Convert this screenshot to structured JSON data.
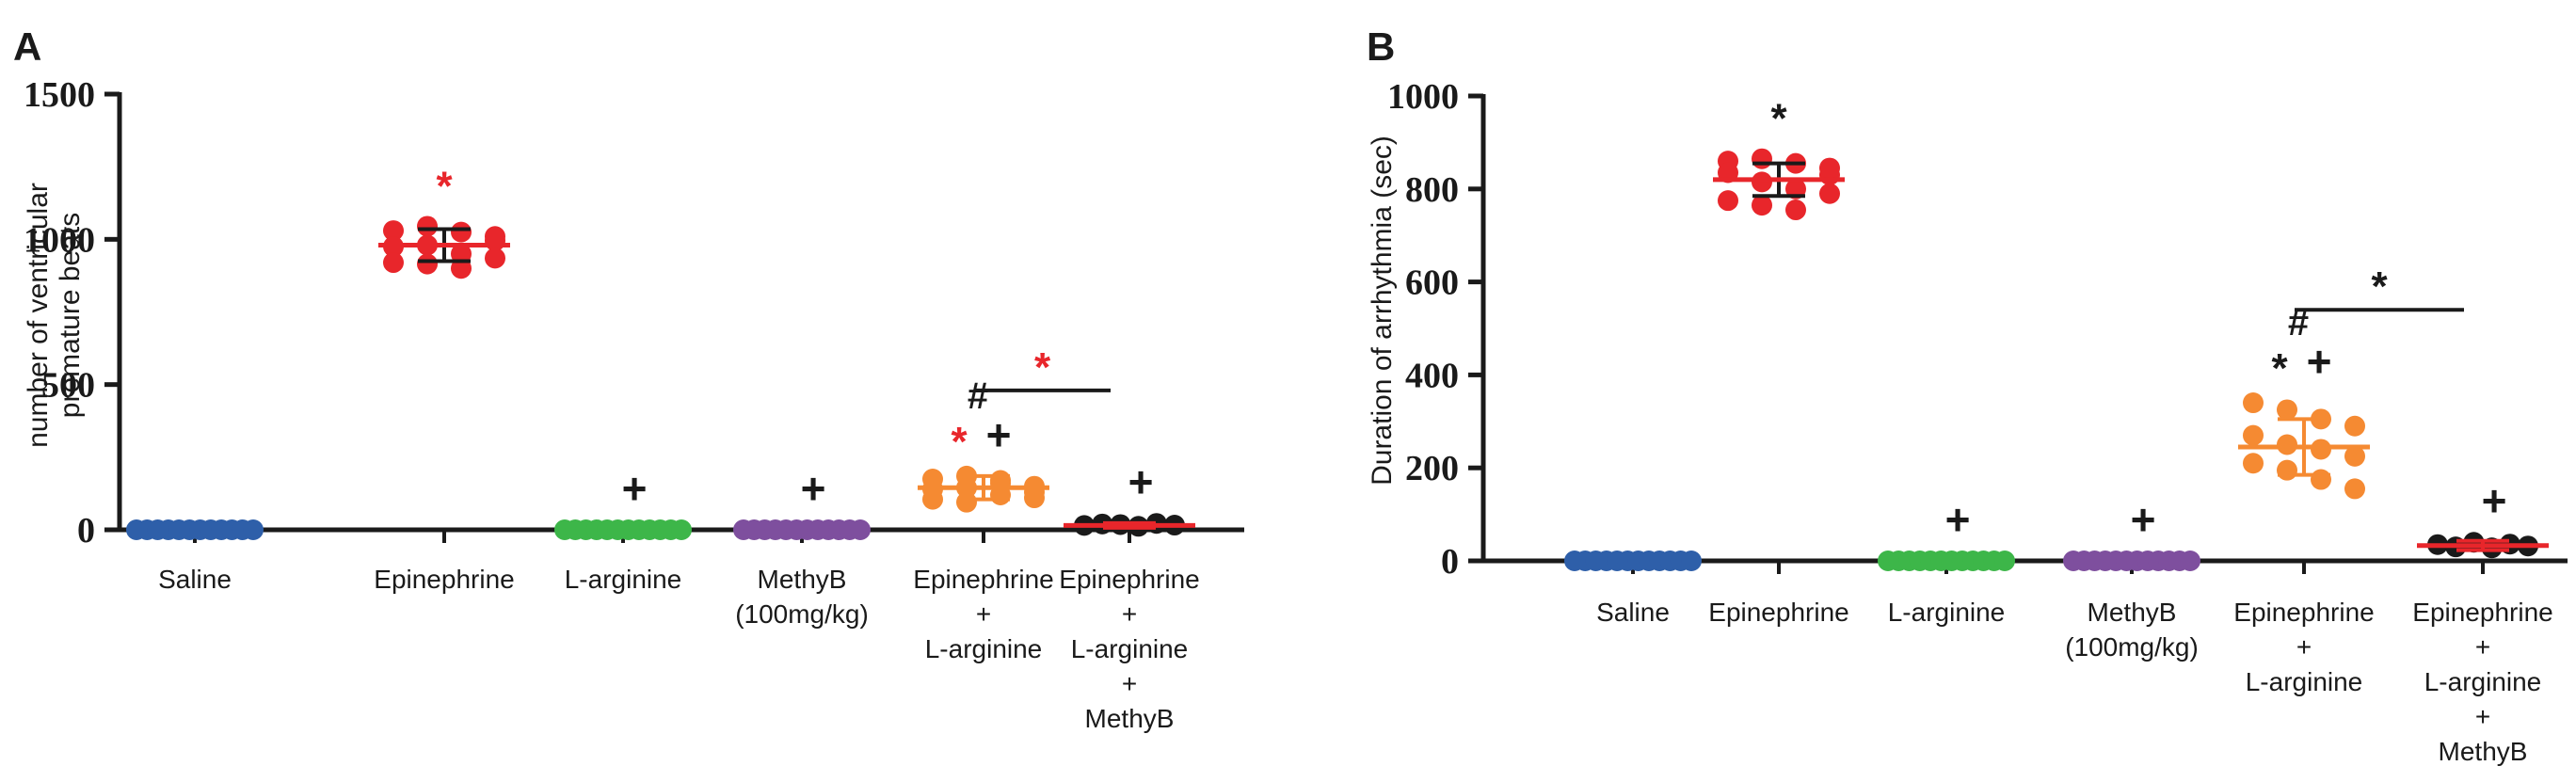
{
  "chart_data": [
    {
      "panel": "A",
      "type": "scatter",
      "ylabel": [
        "number of ventricular",
        "premature beats"
      ],
      "ylim": [
        0,
        1500
      ],
      "yticks": [
        0,
        500,
        1000,
        1500
      ],
      "categories": [
        {
          "lines": [
            "Saline"
          ]
        },
        {
          "lines": [
            "Epinephrine"
          ]
        },
        {
          "lines": [
            "L-arginine"
          ]
        },
        {
          "lines": [
            "MethyB",
            "(100mg/kg)"
          ]
        },
        {
          "lines": [
            "Epinephrine",
            "+",
            "L-arginine"
          ]
        },
        {
          "lines": [
            "Epinephrine",
            "+",
            "L-arginine",
            "+",
            "MethyB"
          ]
        }
      ],
      "groups": [
        {
          "color": "#2E5FA9",
          "mean": 0,
          "sd": 0,
          "points": [
            0,
            0,
            0,
            0,
            0,
            0,
            0,
            0,
            0,
            0,
            0,
            0
          ],
          "marks": []
        },
        {
          "color": "#E8262B",
          "line_color": "#E8262B",
          "err_color": "#1a1a1a",
          "mean": 980,
          "sd": 55,
          "points": [
            1030,
            1045,
            1025,
            995,
            975,
            980,
            950,
            935,
            920,
            915,
            900,
            1010
          ],
          "marks": [
            {
              "text": "*",
              "color": "#E8262B"
            }
          ]
        },
        {
          "color": "#3DB649",
          "mean": 0,
          "sd": 0,
          "points": [
            0,
            0,
            0,
            0,
            0,
            0,
            0,
            0,
            0,
            0,
            0,
            0
          ],
          "marks": [
            {
              "text": "+",
              "color": "#1a1a1a"
            }
          ]
        },
        {
          "color": "#7E4F9E",
          "mean": 0,
          "sd": 0,
          "points": [
            0,
            0,
            0,
            0,
            0,
            0,
            0,
            0,
            0,
            0,
            0,
            0
          ],
          "marks": [
            {
              "text": "+",
              "color": "#1a1a1a"
            }
          ]
        },
        {
          "color": "#F58A32",
          "line_color": "#F58A32",
          "err_color": "#F58A32",
          "mean": 145,
          "sd": 40,
          "points": [
            175,
            185,
            170,
            150,
            140,
            145,
            120,
            110,
            105,
            95,
            160,
            130
          ],
          "marks": [
            {
              "text": "#",
              "color": "#1a1a1a"
            },
            {
              "text": "*",
              "color": "#E8262B"
            },
            {
              "text": "+",
              "color": "#1a1a1a"
            }
          ]
        },
        {
          "color": "#1a1a1a",
          "line_color": "#E8262B",
          "err_color": "#E8262B",
          "mean": 15,
          "sd": 8,
          "points": [
            15,
            20,
            18,
            12,
            22,
            16
          ],
          "marks": [
            {
              "text": "+",
              "color": "#1a1a1a"
            }
          ]
        }
      ],
      "bracket": {
        "from": 4,
        "to": 5,
        "value": 480,
        "text": "*",
        "color": "#E8262B"
      }
    },
    {
      "panel": "B",
      "type": "scatter",
      "ylabel": [
        "Duration of arrhythmia (sec)"
      ],
      "ylim": [
        0,
        1000
      ],
      "yticks": [
        0,
        200,
        400,
        600,
        800,
        1000
      ],
      "categories": [
        {
          "lines": [
            "Saline"
          ]
        },
        {
          "lines": [
            "Epinephrine"
          ]
        },
        {
          "lines": [
            "L-arginine"
          ]
        },
        {
          "lines": [
            "MethyB",
            "(100mg/kg)"
          ]
        },
        {
          "lines": [
            "Epinephrine",
            "+",
            "L-arginine"
          ]
        },
        {
          "lines": [
            "Epinephrine",
            "+",
            "L-arginine",
            "+",
            "MethyB"
          ]
        }
      ],
      "groups": [
        {
          "color": "#2E5FA9",
          "mean": 0,
          "sd": 0,
          "points": [
            0,
            0,
            0,
            0,
            0,
            0,
            0,
            0,
            0,
            0,
            0,
            0
          ],
          "marks": []
        },
        {
          "color": "#E8262B",
          "line_color": "#E8262B",
          "err_color": "#1a1a1a",
          "mean": 820,
          "sd": 35,
          "points": [
            860,
            865,
            855,
            830,
            835,
            815,
            800,
            790,
            775,
            765,
            755,
            845
          ],
          "marks": [
            {
              "text": "*",
              "color": "#1a1a1a"
            }
          ]
        },
        {
          "color": "#3DB649",
          "mean": 0,
          "sd": 0,
          "points": [
            0,
            0,
            0,
            0,
            0,
            0,
            0,
            0,
            0,
            0,
            0,
            0
          ],
          "marks": [
            {
              "text": "+",
              "color": "#1a1a1a"
            }
          ]
        },
        {
          "color": "#7E4F9E",
          "mean": 0,
          "sd": 0,
          "points": [
            0,
            0,
            0,
            0,
            0,
            0,
            0,
            0,
            0,
            0,
            0,
            0
          ],
          "marks": [
            {
              "text": "+",
              "color": "#1a1a1a"
            }
          ]
        },
        {
          "color": "#F58A32",
          "line_color": "#F58A32",
          "err_color": "#F58A32",
          "mean": 245,
          "sd": 60,
          "points": [
            340,
            325,
            305,
            290,
            270,
            250,
            240,
            225,
            210,
            195,
            175,
            155
          ],
          "marks": [
            {
              "text": "#",
              "color": "#1a1a1a"
            },
            {
              "text": "*",
              "color": "#1a1a1a"
            },
            {
              "text": "+",
              "color": "#1a1a1a"
            }
          ]
        },
        {
          "color": "#1a1a1a",
          "line_color": "#E8262B",
          "err_color": "#E8262B",
          "mean": 33,
          "sd": 10,
          "points": [
            35,
            30,
            40,
            28,
            36,
            32
          ],
          "marks": [
            {
              "text": "+",
              "color": "#1a1a1a"
            }
          ]
        }
      ],
      "bracket": {
        "from": 4,
        "to": 5,
        "value": 540,
        "text": "*",
        "color": "#1a1a1a"
      }
    }
  ]
}
